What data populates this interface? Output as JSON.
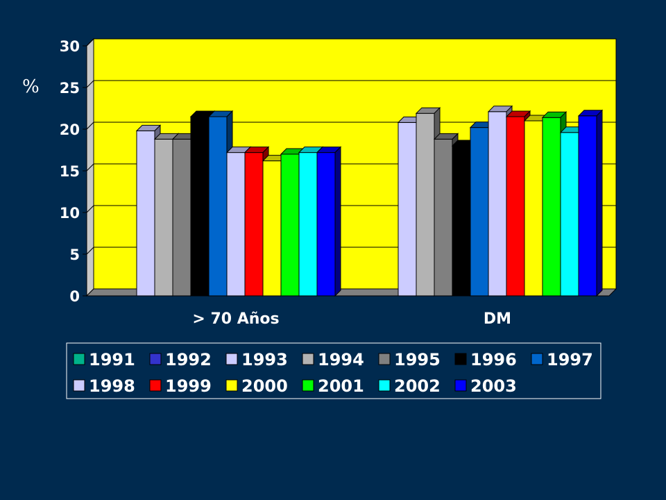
{
  "chart_data": {
    "type": "bar",
    "style": "3d-clustered",
    "ylabel": "%",
    "ylim": [
      0,
      30
    ],
    "yticks": [
      0,
      5,
      10,
      15,
      20,
      25,
      30
    ],
    "grid": true,
    "legend_position": "bottom",
    "colors": {
      "page_background": "#002a4f",
      "plot_background": "#ffff00",
      "floor": "#808080"
    },
    "categories": [
      "> 70 Años",
      "DM"
    ],
    "series": [
      {
        "name": "1991",
        "color": "#00b38a",
        "values": [
          0,
          0
        ]
      },
      {
        "name": "1992",
        "color": "#3333cc",
        "values": [
          0,
          0
        ]
      },
      {
        "name": "1993",
        "color": "#ccccff",
        "values": [
          19.8,
          20.8
        ]
      },
      {
        "name": "1994",
        "color": "#b3b3b3",
        "values": [
          18.8,
          21.9
        ]
      },
      {
        "name": "1995",
        "color": "#808080",
        "values": [
          18.8,
          18.8
        ]
      },
      {
        "name": "1996",
        "color": "#000000",
        "values": [
          21.5,
          18.0
        ]
      },
      {
        "name": "1997",
        "color": "#0066cc",
        "values": [
          21.5,
          20.2
        ]
      },
      {
        "name": "1998",
        "color": "#ccccff",
        "values": [
          17.2,
          22.1
        ]
      },
      {
        "name": "1999",
        "color": "#ff0000",
        "values": [
          17.2,
          21.5
        ]
      },
      {
        "name": "2000",
        "color": "#ffff00",
        "values": [
          16.2,
          21.0
        ]
      },
      {
        "name": "2001",
        "color": "#00ff00",
        "values": [
          17.0,
          21.4
        ]
      },
      {
        "name": "2002",
        "color": "#00ffff",
        "values": [
          17.2,
          19.6
        ]
      },
      {
        "name": "2003",
        "color": "#0000ff",
        "values": [
          17.2,
          21.6
        ]
      }
    ]
  }
}
